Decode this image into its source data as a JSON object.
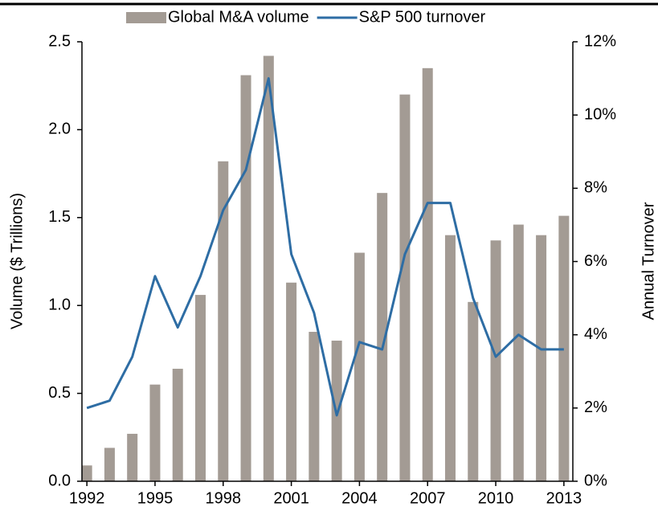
{
  "chart_data": {
    "type": "bar",
    "categories": [
      "1992",
      null,
      null,
      "1995",
      null,
      null,
      "1998",
      null,
      null,
      "2001",
      null,
      null,
      "2004",
      null,
      null,
      "2007",
      null,
      null,
      "2010",
      null,
      null,
      "2013"
    ],
    "series": [
      {
        "name": "Global M&A volume",
        "type": "bar",
        "color": "#a39b94",
        "values": [
          0.09,
          0.19,
          0.27,
          0.55,
          0.64,
          1.06,
          1.82,
          2.31,
          2.42,
          1.13,
          0.85,
          0.8,
          1.3,
          1.64,
          2.2,
          2.35,
          1.4,
          1.02,
          1.37,
          1.46,
          1.4,
          1.51
        ]
      },
      {
        "name": "S&P 500 turnover",
        "type": "line",
        "axis": "y2",
        "color": "#2e6da4",
        "values": [
          2.0,
          2.2,
          3.4,
          5.6,
          4.2,
          5.6,
          7.4,
          8.5,
          11.0,
          6.2,
          4.6,
          1.8,
          3.8,
          3.6,
          6.2,
          7.6,
          7.6,
          5.0,
          3.4,
          4.0,
          3.6,
          3.6
        ]
      }
    ],
    "y_label": "Volume ($ Trillions)",
    "y2_label": "Annual Turnover",
    "ylim": [
      0,
      2.5
    ],
    "yticks": [
      {
        "value": 0,
        "label": "0.0"
      },
      0.5,
      {
        "value": 1,
        "label": "1.0"
      },
      1.5,
      {
        "value": 2,
        "label": "2.0"
      },
      2.5
    ],
    "y2lim": [
      0,
      12
    ],
    "y2ticks": [
      {
        "value": 0,
        "label": "0%"
      },
      {
        "value": 2,
        "label": "2%"
      },
      {
        "value": 4,
        "label": "4%"
      },
      {
        "value": 6,
        "label": "6%"
      },
      {
        "value": 8,
        "label": "8%"
      },
      {
        "value": 10,
        "label": "10%"
      },
      {
        "value": 12,
        "label": "12%"
      }
    ],
    "legend": "top"
  }
}
